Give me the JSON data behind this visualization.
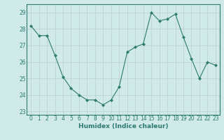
{
  "x": [
    0,
    1,
    2,
    3,
    4,
    5,
    6,
    7,
    8,
    9,
    10,
    11,
    12,
    13,
    14,
    15,
    16,
    17,
    18,
    19,
    20,
    21,
    22,
    23
  ],
  "y": [
    28.2,
    27.6,
    27.6,
    26.4,
    25.1,
    24.4,
    24.0,
    23.7,
    23.7,
    23.4,
    23.7,
    24.5,
    26.6,
    26.9,
    27.1,
    29.0,
    28.5,
    28.6,
    28.9,
    27.5,
    26.2,
    25.0,
    26.0,
    25.8
  ],
  "xlabel": "Humidex (Indice chaleur)",
  "xlim": [
    -0.5,
    23.5
  ],
  "ylim": [
    22.8,
    29.5
  ],
  "yticks": [
    23,
    24,
    25,
    26,
    27,
    28,
    29
  ],
  "xticks": [
    0,
    1,
    2,
    3,
    4,
    5,
    6,
    7,
    8,
    9,
    10,
    11,
    12,
    13,
    14,
    15,
    16,
    17,
    18,
    19,
    20,
    21,
    22,
    23
  ],
  "line_color": "#2d7a6e",
  "marker": "D",
  "marker_size": 2.0,
  "bg_color": "#d0eaea",
  "grid_color": "#b8d0d0",
  "label_color": "#2d7a6e",
  "spine_color": "#2d7a6e",
  "xlabel_fontsize": 6.5,
  "tick_fontsize": 5.5
}
